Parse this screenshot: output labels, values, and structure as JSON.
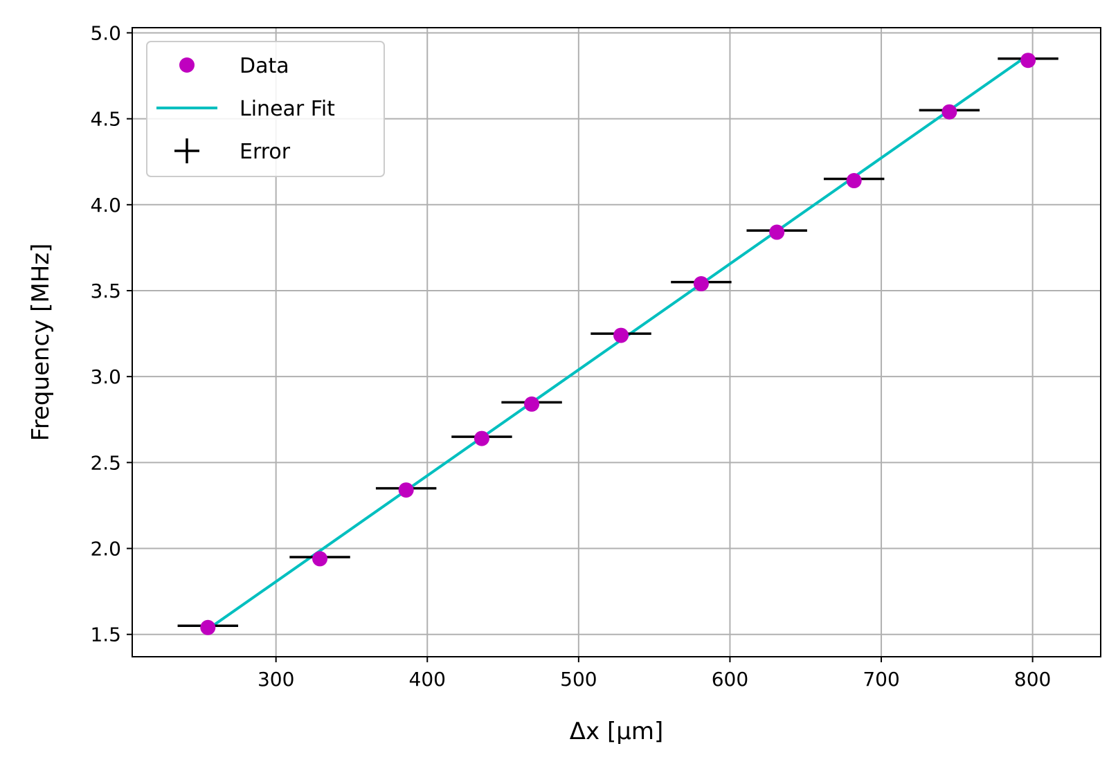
{
  "chart_data": {
    "type": "scatter",
    "title": "",
    "xlabel": "Δx [μm]",
    "ylabel": "Frequency [MHz]",
    "xlim": [
      205,
      845
    ],
    "ylim": [
      1.37,
      5.03
    ],
    "xticks": [
      300,
      400,
      500,
      600,
      700,
      800
    ],
    "xtick_labels": [
      "300",
      "400",
      "500",
      "600",
      "700",
      "800"
    ],
    "yticks": [
      1.5,
      2.0,
      2.5,
      3.0,
      3.5,
      4.0,
      4.5,
      5.0
    ],
    "ytick_labels": [
      "1.5",
      "2.0",
      "2.5",
      "3.0",
      "3.5",
      "4.0",
      "4.5",
      "5.0"
    ],
    "grid": true,
    "legend_position": "upper-left",
    "series": [
      {
        "name": "Data",
        "kind": "points",
        "color": "#bf00bf",
        "x": [
          255,
          329,
          386,
          436,
          469,
          528,
          581,
          631,
          682,
          745,
          797
        ],
        "y": [
          1.54,
          1.94,
          2.34,
          2.64,
          2.84,
          3.24,
          3.54,
          3.84,
          4.14,
          4.54,
          4.84
        ]
      },
      {
        "name": "Linear Fit",
        "kind": "line",
        "color": "#00bfbf",
        "x": [
          255,
          797
        ],
        "y": [
          1.53,
          4.87
        ]
      },
      {
        "name": "Error",
        "kind": "xerror",
        "color": "#000000",
        "x": [
          255,
          329,
          386,
          436,
          469,
          528,
          581,
          631,
          682,
          745,
          797
        ],
        "y": [
          1.55,
          1.95,
          2.35,
          2.65,
          2.85,
          3.25,
          3.55,
          3.85,
          4.15,
          4.55,
          4.85
        ],
        "xerr": 20
      }
    ],
    "legend": [
      {
        "label": "Data",
        "symbol": "marker",
        "color": "#bf00bf"
      },
      {
        "label": "Linear Fit",
        "symbol": "line",
        "color": "#00bfbf"
      },
      {
        "label": "Error",
        "symbol": "cross",
        "color": "#000000"
      }
    ]
  }
}
